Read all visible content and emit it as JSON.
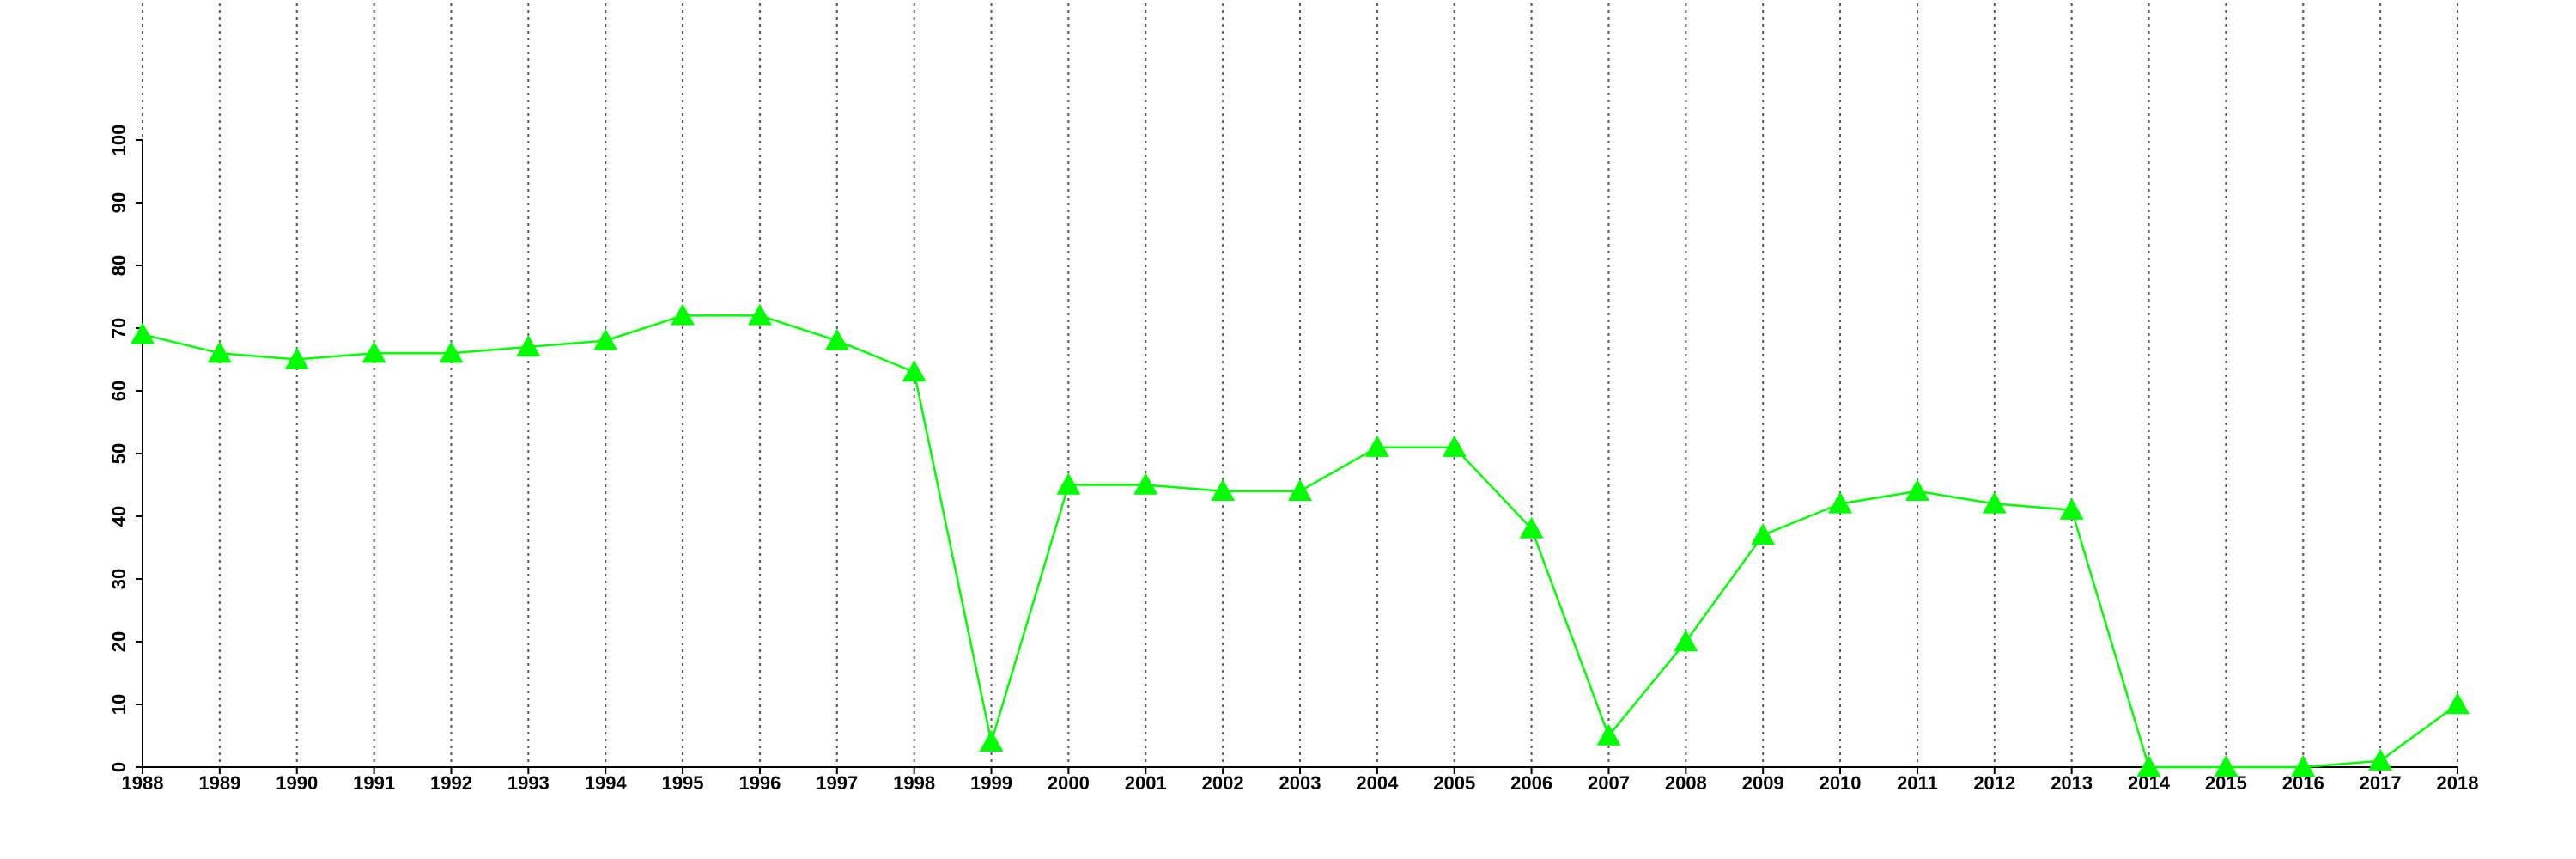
{
  "chart_data": {
    "type": "line",
    "marker": "triangle",
    "color": "#00ff00",
    "x": [
      1988,
      1989,
      1990,
      1991,
      1992,
      1993,
      1994,
      1995,
      1996,
      1997,
      1998,
      1999,
      2000,
      2001,
      2002,
      2003,
      2004,
      2005,
      2006,
      2007,
      2008,
      2009,
      2010,
      2011,
      2012,
      2013,
      2014,
      2015,
      2016,
      2017,
      2018
    ],
    "values": [
      69,
      66,
      65,
      66,
      66,
      67,
      68,
      72,
      72,
      68,
      63,
      4,
      45,
      45,
      44,
      44,
      51,
      51,
      38,
      5,
      20,
      37,
      42,
      44,
      42,
      41,
      0,
      0,
      0,
      1,
      10
    ],
    "xlim": [
      1988,
      2018
    ],
    "xticks": [
      1988,
      1989,
      1990,
      1991,
      1992,
      1993,
      1994,
      1995,
      1996,
      1997,
      1998,
      1999,
      2000,
      2001,
      2002,
      2003,
      2004,
      2005,
      2006,
      2007,
      2008,
      2009,
      2010,
      2011,
      2012,
      2013,
      2014,
      2015,
      2016,
      2017,
      2018
    ],
    "ylim": [
      0,
      100
    ],
    "yticks": [
      0,
      10,
      20,
      30,
      40,
      50,
      60,
      70,
      80,
      90,
      100
    ],
    "xgrid": true
  }
}
